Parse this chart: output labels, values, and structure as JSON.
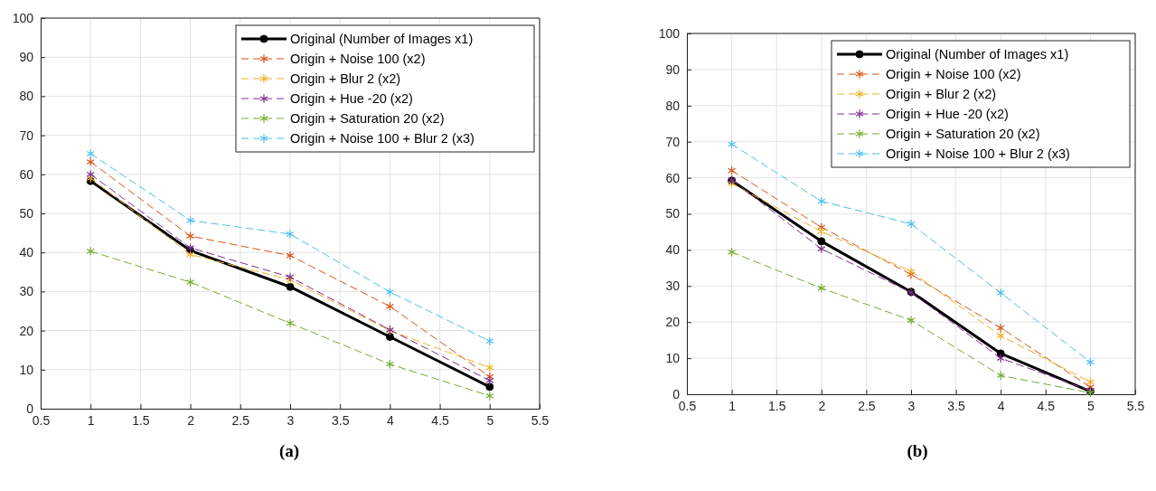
{
  "chart_data": [
    {
      "type": "line",
      "title": "(a)",
      "x": [
        1,
        2,
        3,
        4,
        5
      ],
      "xlim": [
        0.5,
        5.5
      ],
      "xticks": [
        0.5,
        1,
        1.5,
        2,
        2.5,
        3,
        3.5,
        4,
        4.5,
        5,
        5.5
      ],
      "ylim": [
        0,
        100
      ],
      "yticks": [
        0,
        10,
        20,
        30,
        40,
        50,
        60,
        70,
        80,
        90,
        100
      ],
      "grid": true,
      "legend": "top right",
      "series": [
        {
          "name": "Original (Number of Images x1)",
          "color": "#000000",
          "marker": "circle",
          "line_style": "solid",
          "values": [
            58.3,
            40.5,
            31.2,
            18.4,
            5.6
          ]
        },
        {
          "name": "Origin + Noise 100 (x2)",
          "color": "#d95319",
          "marker": "cross",
          "line_style": "dashed",
          "values": [
            63.2,
            44.2,
            39.2,
            26.2,
            8.2
          ]
        },
        {
          "name": "Origin + Blur 2 (x2)",
          "color": "#edb120",
          "marker": "cross",
          "line_style": "dashed",
          "values": [
            59,
            39.5,
            33,
            20,
            10.5
          ]
        },
        {
          "name": "Origin + Hue -20 (x2)",
          "color": "#7e2f8e",
          "marker": "cross",
          "line_style": "dashed",
          "values": [
            60,
            41.2,
            33.7,
            20.2,
            7.2
          ]
        },
        {
          "name": "Origin + Saturation 20 (x2)",
          "color": "#77ac30",
          "marker": "cross",
          "line_style": "dashed",
          "values": [
            40.3,
            32.4,
            21.9,
            11.4,
            3.3
          ]
        },
        {
          "name": "Origin + Noise 100 + Blur 2 (x3)",
          "color": "#4dbeee",
          "marker": "cross",
          "line_style": "dashed",
          "values": [
            65.3,
            48.2,
            44.7,
            29.9,
            17.3
          ]
        }
      ]
    },
    {
      "type": "line",
      "title": "(b)",
      "x": [
        1,
        2,
        3,
        4,
        5
      ],
      "xlim": [
        0.5,
        5.5
      ],
      "xticks": [
        0.5,
        1,
        1.5,
        2,
        2.5,
        3,
        3.5,
        4,
        4.5,
        5,
        5.5
      ],
      "ylim": [
        0,
        100
      ],
      "yticks": [
        0,
        10,
        20,
        30,
        40,
        50,
        60,
        70,
        80,
        90,
        100
      ],
      "grid": true,
      "legend": "top right",
      "series": [
        {
          "name": "Original (Number of Images x1)",
          "color": "#000000",
          "marker": "circle",
          "line_style": "solid",
          "values": [
            59.2,
            42.4,
            28.4,
            11.3,
            0.8
          ]
        },
        {
          "name": "Origin + Noise 100 (x2)",
          "color": "#d95319",
          "marker": "cross",
          "line_style": "dashed",
          "values": [
            62,
            46.3,
            33.2,
            18.4,
            2
          ]
        },
        {
          "name": "Origin + Blur 2 (x2)",
          "color": "#edb120",
          "marker": "cross",
          "line_style": "dashed",
          "values": [
            58.4,
            45.1,
            34,
            16.2,
            3.4
          ]
        },
        {
          "name": "Origin + Hue -20 (x2)",
          "color": "#7e2f8e",
          "marker": "cross",
          "line_style": "dashed",
          "values": [
            59.4,
            40.3,
            28.2,
            10,
            1
          ]
        },
        {
          "name": "Origin + Saturation 20 (x2)",
          "color": "#77ac30",
          "marker": "cross",
          "line_style": "dashed",
          "values": [
            39.4,
            29.4,
            20.5,
            5.2,
            0.4
          ]
        },
        {
          "name": "Origin + Noise 100 + Blur 2 (x3)",
          "color": "#4dbeee",
          "marker": "cross",
          "line_style": "dashed",
          "values": [
            69.3,
            53.5,
            47.2,
            28.1,
            8.9
          ]
        }
      ]
    }
  ]
}
